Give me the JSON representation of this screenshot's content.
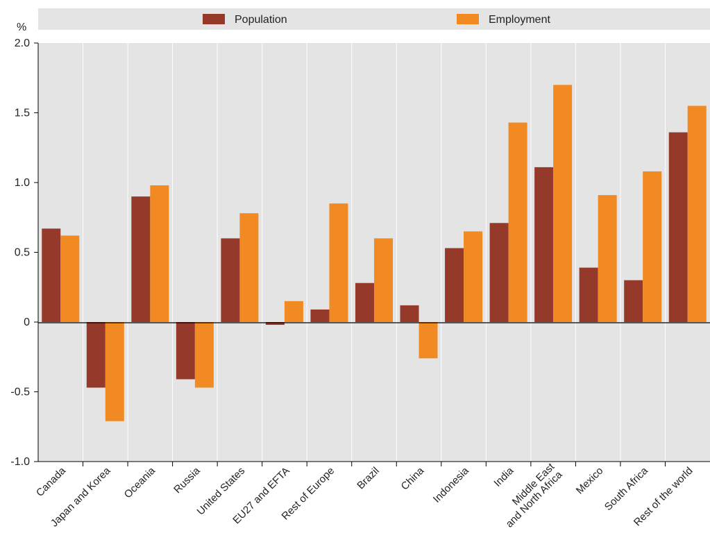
{
  "chart_data": {
    "type": "bar",
    "ylabel": "%",
    "ylim": [
      -1.0,
      2.0
    ],
    "yticks": [
      "2.0",
      "1.5",
      "1.0",
      "0.5",
      "0",
      "-0.5",
      "-1.0"
    ],
    "ytick_values": [
      2.0,
      1.5,
      1.0,
      0.5,
      0,
      -0.5,
      -1.0
    ],
    "grid": "vertical separators",
    "legend_position": "top",
    "categories": [
      "Canada",
      "Japan and Korea",
      "Oceania",
      "Russia",
      "United States",
      "EU27 and EFTA",
      "Rest of Europe",
      "Brazil",
      "China",
      "Indonesia",
      "India",
      "Middle East and North Africa",
      "Mexico",
      "South Africa",
      "Rest of the world"
    ],
    "series": [
      {
        "name": "Population",
        "color": "#953a2b",
        "values": [
          0.67,
          -0.47,
          0.9,
          -0.41,
          0.6,
          -0.02,
          0.09,
          0.28,
          0.12,
          0.53,
          0.71,
          1.11,
          0.39,
          0.3,
          1.36
        ]
      },
      {
        "name": "Employment",
        "color": "#f28a23",
        "values": [
          0.62,
          -0.71,
          0.98,
          -0.47,
          0.78,
          0.15,
          0.85,
          0.6,
          -0.26,
          0.65,
          1.43,
          1.7,
          0.91,
          1.08,
          1.55
        ]
      }
    ]
  },
  "colors": {
    "plot_background": "#e4e4e4",
    "gridline": "#ffffff",
    "axis": "#000000"
  }
}
